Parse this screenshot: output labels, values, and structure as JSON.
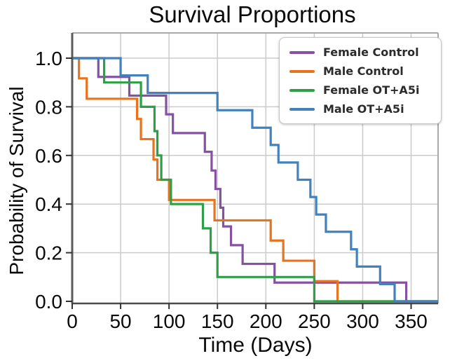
{
  "title": "Survival Proportions",
  "axes": {
    "x": {
      "label": "Time (Days)",
      "tick_labels": [
        "0",
        "50",
        "100",
        "150",
        "200",
        "250",
        "300",
        "350"
      ],
      "tick_values": [
        0,
        50,
        100,
        150,
        200,
        250,
        300,
        350
      ],
      "min": 0,
      "max": 378
    },
    "y": {
      "label": "Probability of Survival",
      "tick_labels": [
        "1.0",
        "0.8",
        "0.6",
        "0.4",
        "0.2",
        "0.0"
      ],
      "tick_values": [
        1.0,
        0.8,
        0.6,
        0.4,
        0.2,
        0.0
      ],
      "min": 0.0,
      "max": 1.0
    }
  },
  "legend": {
    "position": "upper-right",
    "entries": [
      {
        "label": "Female Control",
        "color": "#8452a0"
      },
      {
        "label": "Male Control",
        "color": "#e8731e"
      },
      {
        "label": "Female OT+A5i",
        "color": "#2f9e48"
      },
      {
        "label": "Male OT+A5i",
        "color": "#4381bd"
      }
    ]
  },
  "chart_data": {
    "type": "line",
    "subtype": "kaplan-meier-step",
    "title": "Survival Proportions",
    "xlabel": "Time (Days)",
    "ylabel": "Probability of Survival",
    "xlim": [
      0,
      378
    ],
    "ylim": [
      0,
      1.1
    ],
    "grid": true,
    "legend_position": "upper right",
    "point_format": "[day_of_event, survival_probability_after_event]",
    "series": [
      {
        "name": "Female Control",
        "color": "#8452a0",
        "n_subjects": 13,
        "start": [
          0,
          1.0
        ],
        "points": [
          [
            27,
            0.923
          ],
          [
            59,
            0.846
          ],
          [
            97,
            0.769
          ],
          [
            104,
            0.692
          ],
          [
            137,
            0.615
          ],
          [
            144,
            0.538
          ],
          [
            148,
            0.462
          ],
          [
            153,
            0.385
          ],
          [
            156,
            0.308
          ],
          [
            164,
            0.231
          ],
          [
            176,
            0.154
          ],
          [
            209,
            0.077
          ],
          [
            345,
            0.0
          ]
        ]
      },
      {
        "name": "Male Control",
        "color": "#e8731e",
        "n_subjects": 12,
        "start": [
          0,
          1.0
        ],
        "points": [
          [
            7,
            0.917
          ],
          [
            15,
            0.833
          ],
          [
            67,
            0.75
          ],
          [
            71,
            0.667
          ],
          [
            84,
            0.583
          ],
          [
            88,
            0.5
          ],
          [
            100,
            0.417
          ],
          [
            147,
            0.333
          ],
          [
            205,
            0.25
          ],
          [
            218,
            0.167
          ],
          [
            250,
            0.083
          ],
          [
            274,
            0.0
          ]
        ]
      },
      {
        "name": "Female OT+A5i",
        "color": "#2f9e48",
        "n_subjects": 10,
        "start": [
          0,
          1.0
        ],
        "points": [
          [
            33,
            0.9
          ],
          [
            71,
            0.8
          ],
          [
            85,
            0.7
          ],
          [
            88,
            0.6
          ],
          [
            92,
            0.5
          ],
          [
            102,
            0.4
          ],
          [
            135,
            0.3
          ],
          [
            143,
            0.2
          ],
          [
            150,
            0.1
          ],
          [
            250,
            0.0
          ]
        ]
      },
      {
        "name": "Male OT+A5i",
        "color": "#4381bd",
        "n_subjects": 14,
        "start": [
          0,
          1.0
        ],
        "points": [
          [
            50,
            0.929
          ],
          [
            78,
            0.857
          ],
          [
            150,
            0.786
          ],
          [
            186,
            0.714
          ],
          [
            205,
            0.643
          ],
          [
            213,
            0.571
          ],
          [
            233,
            0.5
          ],
          [
            246,
            0.429
          ],
          [
            252,
            0.357
          ],
          [
            262,
            0.286
          ],
          [
            288,
            0.214
          ],
          [
            294,
            0.143
          ],
          [
            318,
            0.071
          ],
          [
            333,
            0.0
          ]
        ]
      }
    ]
  }
}
